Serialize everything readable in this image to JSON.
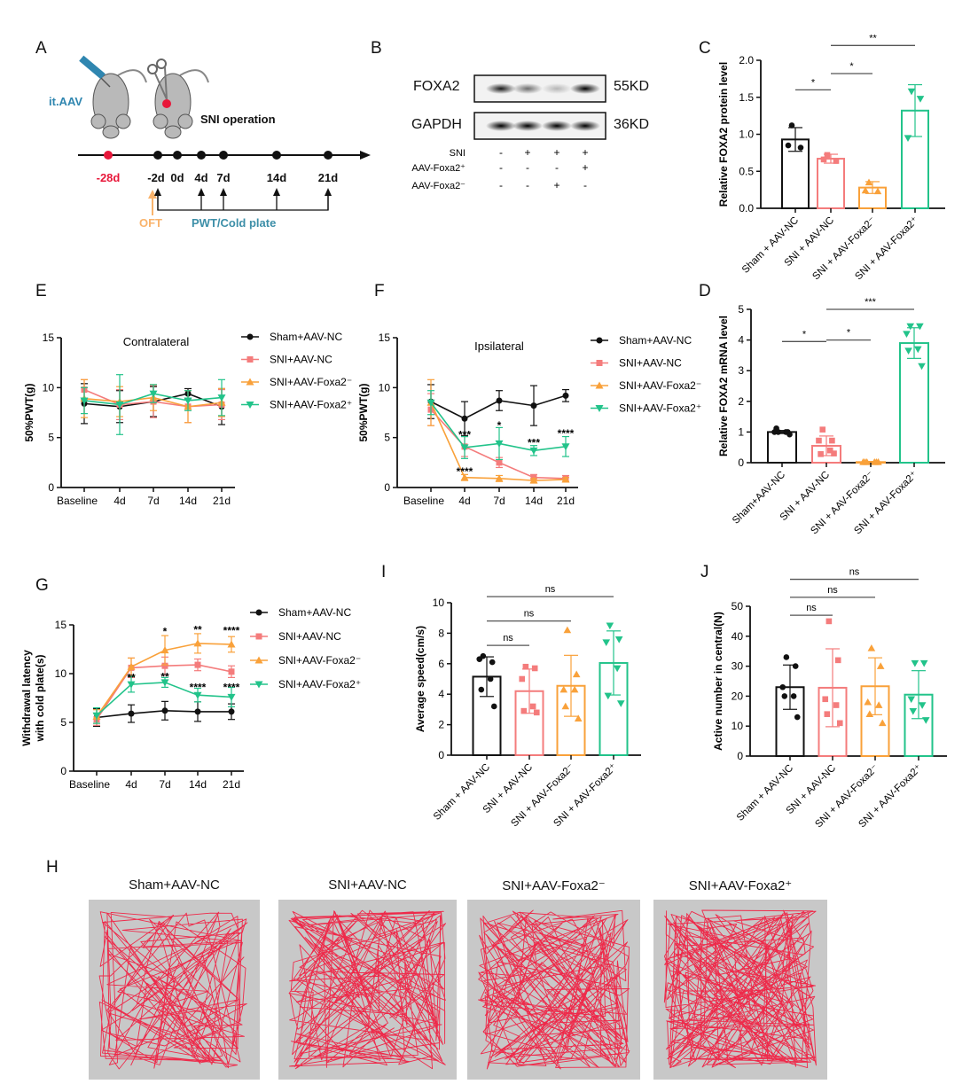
{
  "colors": {
    "sham": "#111111",
    "sni_nc": "#f47c7c",
    "foxa2_minus": "#f9a13a",
    "foxa2_plus": "#22c38a",
    "timeline_red": "#e8173a",
    "aav_blue": "#2f86b0",
    "oft_orange": "#f9b36b",
    "pwt_teal": "#3d8fa8",
    "arena_gray": "#c8c8c8",
    "track_red": "#ee2a4a"
  },
  "panel_A": {
    "label": "A",
    "injection_label": "it.AAV",
    "surgery_label": "SNI operation",
    "timepoints": [
      "-28d",
      "-2d",
      "0d",
      "4d",
      "7d",
      "14d",
      "21d"
    ],
    "oft_label": "OFT",
    "test_label": "PWT/Cold plate",
    "icons": [
      "syringe-icon",
      "mouse-icon",
      "scissors-icon"
    ]
  },
  "panel_B": {
    "label": "B",
    "blots": [
      {
        "name": "FOXA2",
        "size": "55KD",
        "band_intensity": [
          0.9,
          0.55,
          0.25,
          1.0
        ]
      },
      {
        "name": "GAPDH",
        "size": "36KD",
        "band_intensity": [
          1.0,
          1.0,
          1.0,
          1.0
        ]
      }
    ],
    "conditions": [
      {
        "name": "SNI",
        "values": [
          "-",
          "+",
          "+",
          "+"
        ]
      },
      {
        "name": "AAV-Foxa2⁺",
        "values": [
          "-",
          "-",
          "-",
          "+"
        ]
      },
      {
        "name": "AAV-Foxa2⁻",
        "values": [
          "-",
          "-",
          "+",
          "-"
        ]
      }
    ]
  },
  "panel_H": {
    "label": "H",
    "arenas": [
      "Sham+AAV-NC",
      "SNI+AAV-NC",
      "SNI+AAV-Foxa2⁻",
      "SNI+AAV-Foxa2⁺"
    ]
  },
  "chart_data": [
    {
      "id": "C",
      "label": "C",
      "type": "bar",
      "ylabel": "Relative FOXA2 protein level",
      "ylim": [
        0,
        2.0
      ],
      "yticks": [
        0.0,
        0.5,
        1.0,
        1.5,
        2.0
      ],
      "ytick_labels": [
        "0.0",
        "0.5",
        "1.0",
        "1.5",
        "2.0"
      ],
      "categories": [
        "Sham + AAV-NC",
        "SNI + AAV-NC",
        "SNI + AAV-Foxa2⁻",
        "SNI + AAV-Foxa2⁺"
      ],
      "values": [
        0.93,
        0.67,
        0.28,
        1.32
      ],
      "sd": [
        0.16,
        0.06,
        0.08,
        0.35
      ],
      "points": [
        [
          1.12,
          0.82,
          0.85
        ],
        [
          0.72,
          0.64,
          0.66
        ],
        [
          0.35,
          0.23,
          0.24
        ],
        [
          1.58,
          1.48,
          0.95
        ]
      ],
      "significance": [
        {
          "from": 0,
          "to": 1,
          "y": 1.6,
          "label": "*"
        },
        {
          "from": 1,
          "to": 2,
          "y": 1.82,
          "label": "*"
        },
        {
          "from": 1,
          "to": 3,
          "y": 2.2,
          "label": "**"
        }
      ]
    },
    {
      "id": "D",
      "label": "D",
      "type": "bar",
      "ylabel": "Relative FOXA2 mRNA level",
      "ylim": [
        0,
        5
      ],
      "yticks": [
        0,
        1,
        2,
        3,
        4,
        5
      ],
      "ytick_labels": [
        "0",
        "1",
        "2",
        "3",
        "4",
        "5"
      ],
      "categories": [
        "Sham+AAV-NC",
        "SNI + AAV-NC",
        "SNI + AAV-Foxa2⁻",
        "SNI + AAV-Foxa2⁺"
      ],
      "values": [
        1.0,
        0.55,
        0.02,
        3.9
      ],
      "sd": [
        0.05,
        0.32,
        0.02,
        0.5
      ],
      "points": [
        [
          1.0,
          1.0,
          1.0,
          1.0,
          1.12,
          0.92
        ],
        [
          1.08,
          0.72,
          0.72,
          0.4,
          0.28,
          0.3
        ],
        [
          0.02,
          0.02,
          0.02,
          0.02,
          0.02,
          0.02
        ],
        [
          4.45,
          4.45,
          4.2,
          3.7,
          3.65,
          3.15
        ]
      ],
      "significance": [
        {
          "from": 0,
          "to": 1,
          "y": 3.95,
          "label": "*"
        },
        {
          "from": 1,
          "to": 2,
          "y": 4.0,
          "label": "*"
        },
        {
          "from": 1,
          "to": 3,
          "y": 5.0,
          "label": "***"
        }
      ]
    },
    {
      "id": "E",
      "label": "E",
      "type": "line",
      "title": "Contralateral",
      "ylabel": "50%PWT(g)",
      "ylim": [
        0,
        15
      ],
      "yticks": [
        0,
        5,
        10,
        15
      ],
      "categories": [
        "Baseline",
        "4d",
        "7d",
        "14d",
        "21d"
      ],
      "series": [
        {
          "name": "Sham+AAV-NC",
          "marker": "circle",
          "values": [
            8.4,
            8.1,
            8.6,
            9.4,
            8.1
          ],
          "sd": [
            2.0,
            1.6,
            1.5,
            0.5,
            1.8
          ]
        },
        {
          "name": "SNI+AAV-NC",
          "marker": "square",
          "values": [
            9.8,
            8.3,
            8.6,
            8.1,
            8.3
          ],
          "sd": [
            1.0,
            1.5,
            1.6,
            1.6,
            1.5
          ]
        },
        {
          "name": "SNI+AAV-Foxa2⁻",
          "marker": "triangle-up",
          "values": [
            8.9,
            8.6,
            9.0,
            8.1,
            8.5
          ],
          "sd": [
            1.9,
            1.5,
            1.3,
            1.6,
            1.4
          ]
        },
        {
          "name": "SNI+AAV-Foxa2⁺",
          "marker": "triangle-down",
          "values": [
            8.7,
            8.3,
            9.4,
            8.7,
            9.0
          ],
          "sd": [
            1.3,
            3.0,
            0.9,
            1.0,
            1.8
          ]
        }
      ],
      "annotations": [],
      "legend": "right"
    },
    {
      "id": "F",
      "label": "F",
      "type": "line",
      "title": "Ipsilateral",
      "ylabel": "50%PWT(g)",
      "ylim": [
        0,
        15
      ],
      "yticks": [
        0,
        5,
        10,
        15
      ],
      "categories": [
        "Baseline",
        "4d",
        "7d",
        "14d",
        "21d"
      ],
      "series": [
        {
          "name": "Sham+AAV-NC",
          "marker": "circle",
          "values": [
            8.6,
            6.9,
            8.7,
            8.2,
            9.2
          ],
          "sd": [
            1.7,
            1.7,
            1.0,
            2.0,
            0.6
          ]
        },
        {
          "name": "SNI+AAV-NC",
          "marker": "square",
          "values": [
            7.8,
            4.1,
            2.5,
            1.0,
            0.9
          ],
          "sd": [
            1.6,
            1.0,
            0.5,
            0.3,
            0.3
          ]
        },
        {
          "name": "SNI+AAV-Foxa2⁻",
          "marker": "triangle-up",
          "values": [
            8.5,
            1.0,
            0.9,
            0.7,
            0.8
          ],
          "sd": [
            2.3,
            0.3,
            0.3,
            0.2,
            0.2
          ]
        },
        {
          "name": "SNI+AAV-Foxa2⁺",
          "marker": "triangle-down",
          "values": [
            8.5,
            4.0,
            4.4,
            3.7,
            4.1
          ],
          "sd": [
            1.2,
            1.1,
            1.6,
            0.5,
            1.0
          ]
        }
      ],
      "annotations": [
        {
          "x": "4d",
          "y": 5.3,
          "label": "***"
        },
        {
          "x": "4d",
          "y": 1.6,
          "label": "****"
        },
        {
          "x": "7d",
          "y": 6.2,
          "label": "*"
        },
        {
          "x": "14d",
          "y": 4.5,
          "label": "***"
        },
        {
          "x": "21d",
          "y": 5.4,
          "label": "****"
        }
      ],
      "legend": "right"
    },
    {
      "id": "G",
      "label": "G",
      "type": "line",
      "ylabel": "Withdrawal latency|with cold plate(s)",
      "ylim": [
        0,
        15
      ],
      "yticks": [
        0,
        5,
        10,
        15
      ],
      "categories": [
        "Baseline",
        "4d",
        "7d",
        "14d",
        "21d"
      ],
      "series": [
        {
          "name": "Sham+AAV-NC",
          "marker": "circle",
          "values": [
            5.5,
            5.9,
            6.2,
            6.1,
            6.1
          ],
          "sd": [
            0.9,
            0.9,
            0.95,
            1.0,
            0.8
          ]
        },
        {
          "name": "SNI+AAV-NC",
          "marker": "square",
          "values": [
            5.3,
            10.6,
            10.8,
            10.9,
            10.2
          ],
          "sd": [
            0.6,
            1.0,
            0.9,
            0.6,
            0.6
          ]
        },
        {
          "name": "SNI+AAV-Foxa2⁻",
          "marker": "triangle-up",
          "values": [
            5.6,
            10.7,
            12.4,
            13.1,
            13.0
          ],
          "sd": [
            0.7,
            0.9,
            1.5,
            1.0,
            0.8
          ]
        },
        {
          "name": "SNI+AAV-Foxa2⁺",
          "marker": "triangle-down",
          "values": [
            5.7,
            8.9,
            9.1,
            7.8,
            7.6
          ],
          "sd": [
            0.8,
            0.8,
            0.5,
            0.7,
            1.0
          ]
        }
      ],
      "annotations": [
        {
          "x": "7d",
          "y": 14.3,
          "label": "*"
        },
        {
          "x": "14d",
          "y": 14.5,
          "label": "**"
        },
        {
          "x": "21d",
          "y": 14.4,
          "label": "****"
        },
        {
          "x": "4d",
          "y": 9.6,
          "label": "**"
        },
        {
          "x": "7d",
          "y": 9.7,
          "label": "**"
        },
        {
          "x": "14d",
          "y": 8.6,
          "label": "****"
        },
        {
          "x": "21d",
          "y": 8.6,
          "label": "****"
        }
      ],
      "legend": "right"
    },
    {
      "id": "I",
      "label": "I",
      "type": "bar",
      "ylabel": "Average speed(cm/s)",
      "ylim": [
        0,
        10
      ],
      "yticks": [
        0,
        2,
        4,
        6,
        8,
        10
      ],
      "ytick_labels": [
        "0",
        "2",
        "4",
        "6",
        "8",
        "10"
      ],
      "categories": [
        "Sham + AAV-NC",
        "SNI + AAV-NC",
        "SNI + AAV-Foxa2⁻",
        "SNI + AAV-Foxa2⁺"
      ],
      "values": [
        5.15,
        4.2,
        4.55,
        6.05
      ],
      "sd": [
        1.3,
        1.45,
        2.0,
        2.1
      ],
      "points": [
        [
          6.5,
          6.1,
          6.3,
          5.0,
          4.3,
          3.2
        ],
        [
          5.8,
          5.7,
          5.0,
          3.2,
          2.9,
          2.8
        ],
        [
          8.2,
          5.3,
          4.3,
          4.3,
          3.2,
          2.4
        ],
        [
          8.5,
          7.6,
          7.4,
          5.7,
          3.9,
          3.4
        ]
      ],
      "significance": [
        {
          "from": 0,
          "to": 1,
          "y": 7.2,
          "label": "ns"
        },
        {
          "from": 0,
          "to": 2,
          "y": 8.8,
          "label": "ns"
        },
        {
          "from": 0,
          "to": 3,
          "y": 10.4,
          "label": "ns"
        }
      ]
    },
    {
      "id": "J",
      "label": "J",
      "type": "bar",
      "ylabel": "Active number in central(N)",
      "ylim": [
        0,
        50
      ],
      "yticks": [
        0,
        10,
        20,
        30,
        40,
        50
      ],
      "ytick_labels": [
        "0",
        "10",
        "20",
        "30",
        "40",
        "50"
      ],
      "categories": [
        "Sham + AAV-NC",
        "SNI + AAV-NC",
        "SNI + AAV-Foxa2⁻",
        "SNI + AAV-Foxa2⁺"
      ],
      "values": [
        23.0,
        22.8,
        23.3,
        20.5
      ],
      "sd": [
        7.4,
        13.0,
        9.5,
        8.0
      ],
      "points": [
        [
          33,
          30,
          23,
          20,
          20,
          13
        ],
        [
          45,
          32,
          19,
          17,
          14,
          11
        ],
        [
          36,
          30,
          18,
          17,
          14,
          11
        ],
        [
          31,
          31,
          19,
          17,
          15,
          12
        ]
      ],
      "significance": [
        {
          "from": 0,
          "to": 1,
          "y": 47,
          "label": "ns"
        },
        {
          "from": 0,
          "to": 2,
          "y": 53,
          "label": "ns"
        },
        {
          "from": 0,
          "to": 3,
          "y": 59,
          "label": "ns"
        }
      ]
    }
  ]
}
